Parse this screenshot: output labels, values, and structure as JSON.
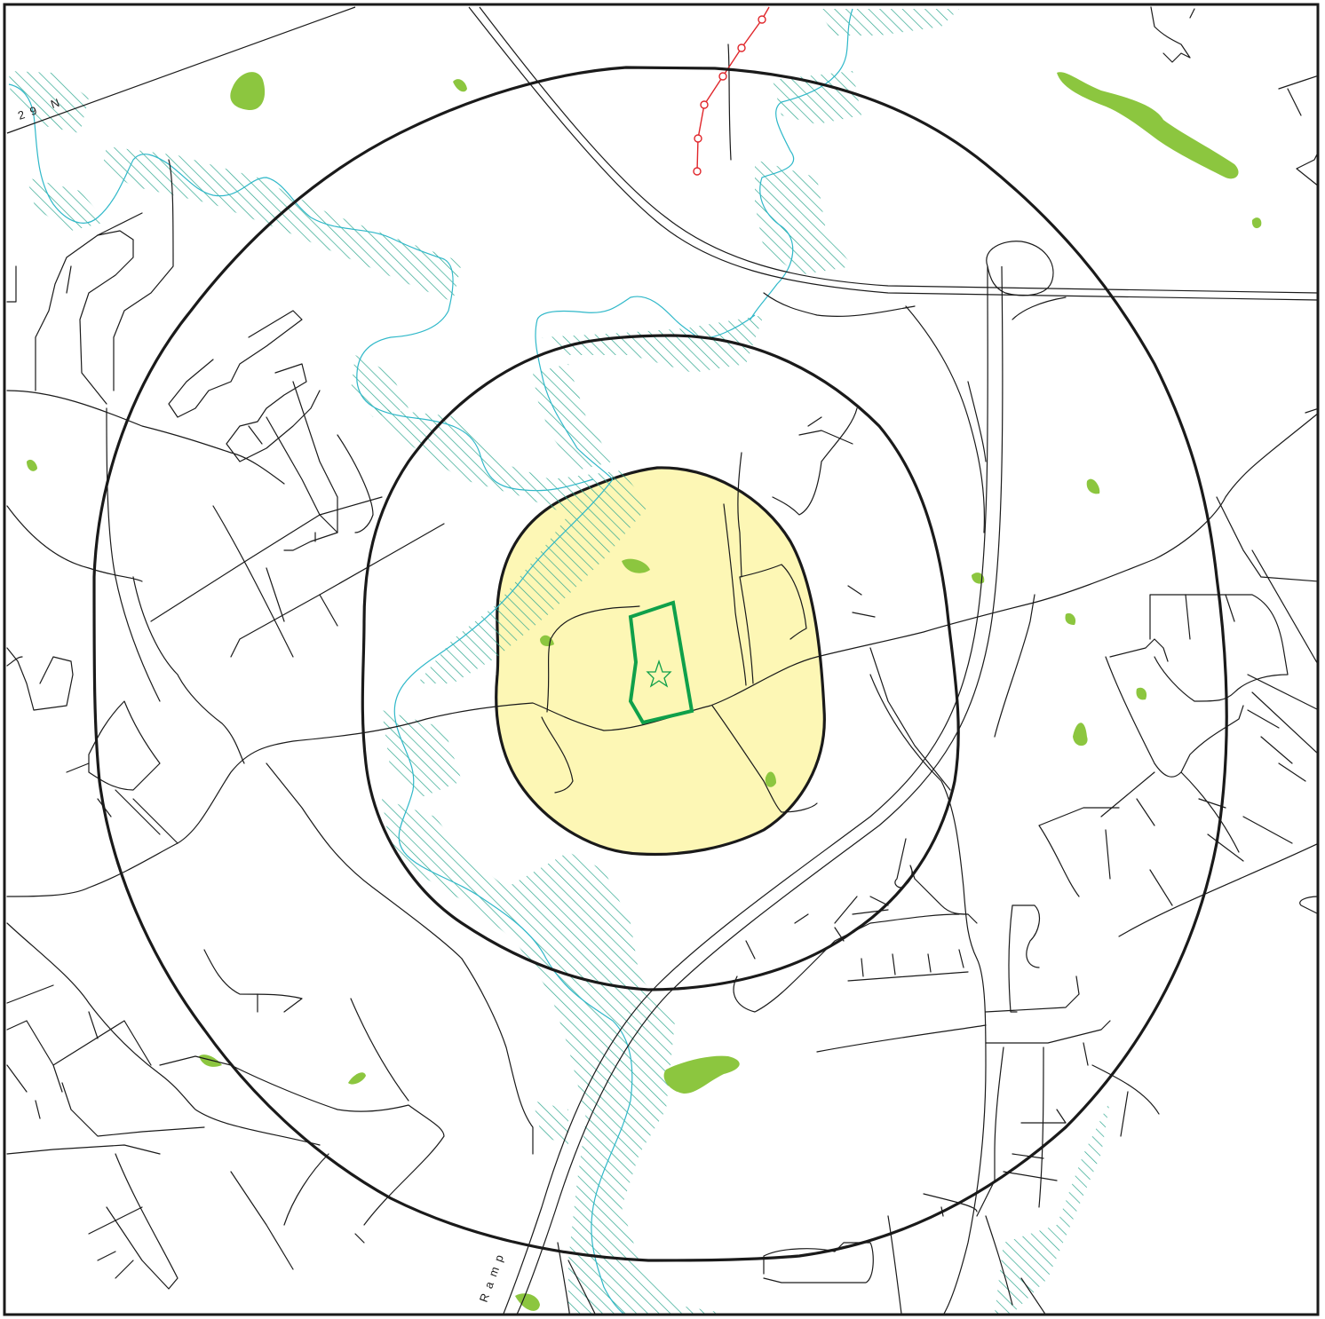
{
  "labels": {
    "highway_29n": "29 N",
    "ramp": "Ramp"
  },
  "colors": {
    "site_zone_fill": "#fdf7b5",
    "site_outline": "#0fa04a",
    "park_fill": "#8cc63f",
    "stream": "#2fb8c9",
    "wetland_hatch": "#30a890",
    "transmission_line": "#e0262b",
    "roads": "#1a1a1a",
    "buffer_rings": "#1a1a1a"
  },
  "icons": {
    "site_marker": "star-icon",
    "transmission_tower": "circle-icon"
  }
}
